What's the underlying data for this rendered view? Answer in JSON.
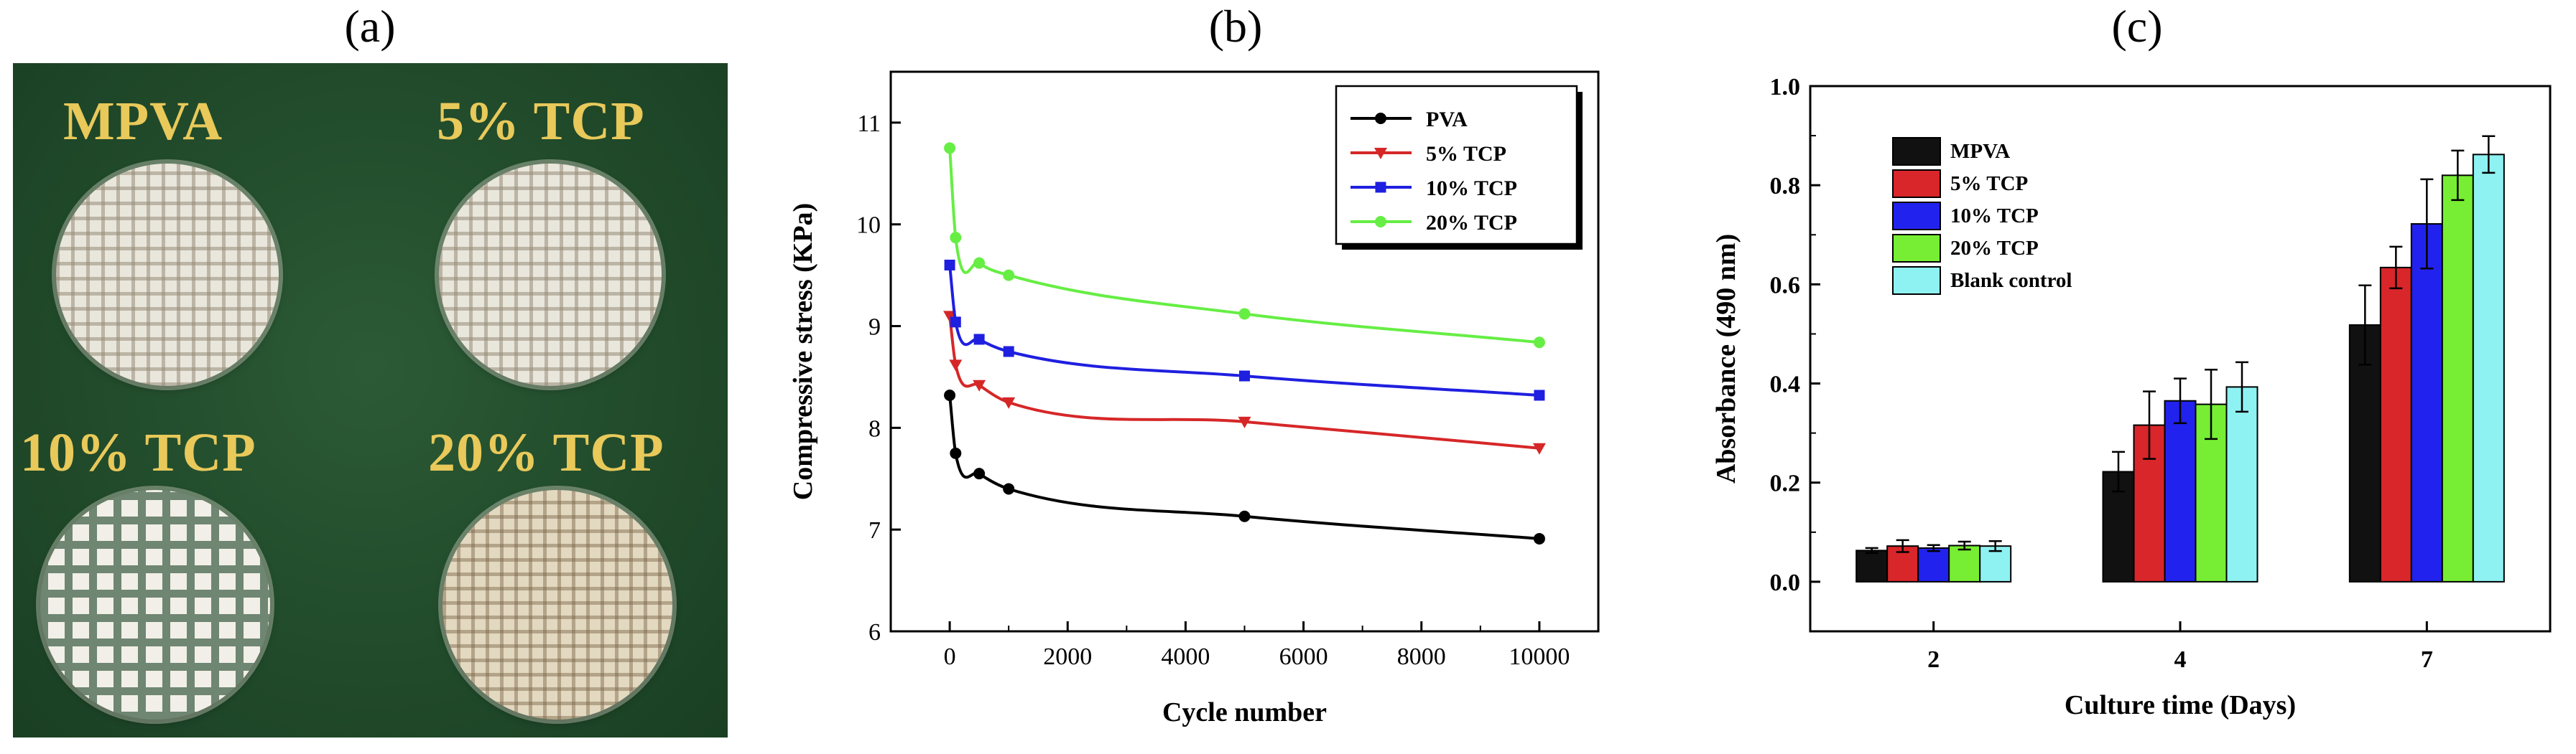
{
  "panel_labels": {
    "a": "(a)",
    "b": "(b)",
    "c": "(c)"
  },
  "photo": {
    "samples": [
      {
        "label": "MPVA"
      },
      {
        "label": "5% TCP"
      },
      {
        "label": "10% TCP"
      },
      {
        "label": "20% TCP"
      }
    ]
  },
  "chart_data": [
    {
      "type": "line",
      "title": "",
      "xlabel": "Cycle number",
      "ylabel": "Compressive stress (KPa)",
      "xlim": [
        -1000,
        11000
      ],
      "ylim": [
        6,
        11.5
      ],
      "xticks": [
        0,
        2000,
        4000,
        6000,
        8000,
        10000
      ],
      "yticks": [
        6,
        7,
        8,
        9,
        10,
        11
      ],
      "legend": "top-right",
      "series": [
        {
          "name": "PVA",
          "color": "#000000",
          "marker": "circle",
          "x": [
            0,
            100,
            500,
            1000,
            5000,
            10000
          ],
          "y": [
            8.32,
            7.75,
            7.55,
            7.4,
            7.13,
            6.91
          ]
        },
        {
          "name": "5% TCP",
          "color": "#d62728",
          "marker": "triangle-down",
          "x": [
            0,
            100,
            500,
            1000,
            5000,
            10000
          ],
          "y": [
            9.1,
            8.62,
            8.42,
            8.25,
            8.06,
            7.8
          ]
        },
        {
          "name": "10% TCP",
          "color": "#1f1fe0",
          "marker": "square",
          "x": [
            0,
            100,
            500,
            1000,
            5000,
            10000
          ],
          "y": [
            9.6,
            9.04,
            8.87,
            8.75,
            8.51,
            8.32
          ]
        },
        {
          "name": "20% TCP",
          "color": "#66ee44",
          "marker": "circle",
          "x": [
            0,
            100,
            500,
            1000,
            5000,
            10000
          ],
          "y": [
            10.75,
            9.87,
            9.62,
            9.5,
            9.12,
            8.84
          ]
        }
      ]
    },
    {
      "type": "bar",
      "title": "",
      "xlabel": "Culture time (Days)",
      "ylabel": "Absorbance (490 nm)",
      "ylim": [
        -0.1,
        1.0
      ],
      "yticks": [
        0.0,
        0.2,
        0.4,
        0.6,
        0.8,
        1.0
      ],
      "ytick_labels": [
        "0.0",
        "0.2",
        "0.4",
        "0.6",
        "0.8",
        "1.0"
      ],
      "categories": [
        "2",
        "4",
        "7"
      ],
      "legend": "top-left",
      "series": [
        {
          "name": "MPVA",
          "color": "#111111",
          "values": [
            0.063,
            0.222,
            0.518
          ],
          "errors": [
            0.005,
            0.04,
            0.08
          ]
        },
        {
          "name": "5% TCP",
          "color": "#d8262a",
          "values": [
            0.072,
            0.316,
            0.634
          ],
          "errors": [
            0.012,
            0.068,
            0.042
          ]
        },
        {
          "name": "10% TCP",
          "color": "#2222ee",
          "values": [
            0.068,
            0.365,
            0.722
          ],
          "errors": [
            0.006,
            0.045,
            0.09
          ]
        },
        {
          "name": "20% TCP",
          "color": "#77ee33",
          "values": [
            0.073,
            0.358,
            0.82
          ],
          "errors": [
            0.008,
            0.07,
            0.05
          ]
        },
        {
          "name": "Blank control",
          "color": "#8ff2f2",
          "values": [
            0.072,
            0.393,
            0.862
          ],
          "errors": [
            0.01,
            0.05,
            0.037
          ]
        }
      ]
    }
  ]
}
